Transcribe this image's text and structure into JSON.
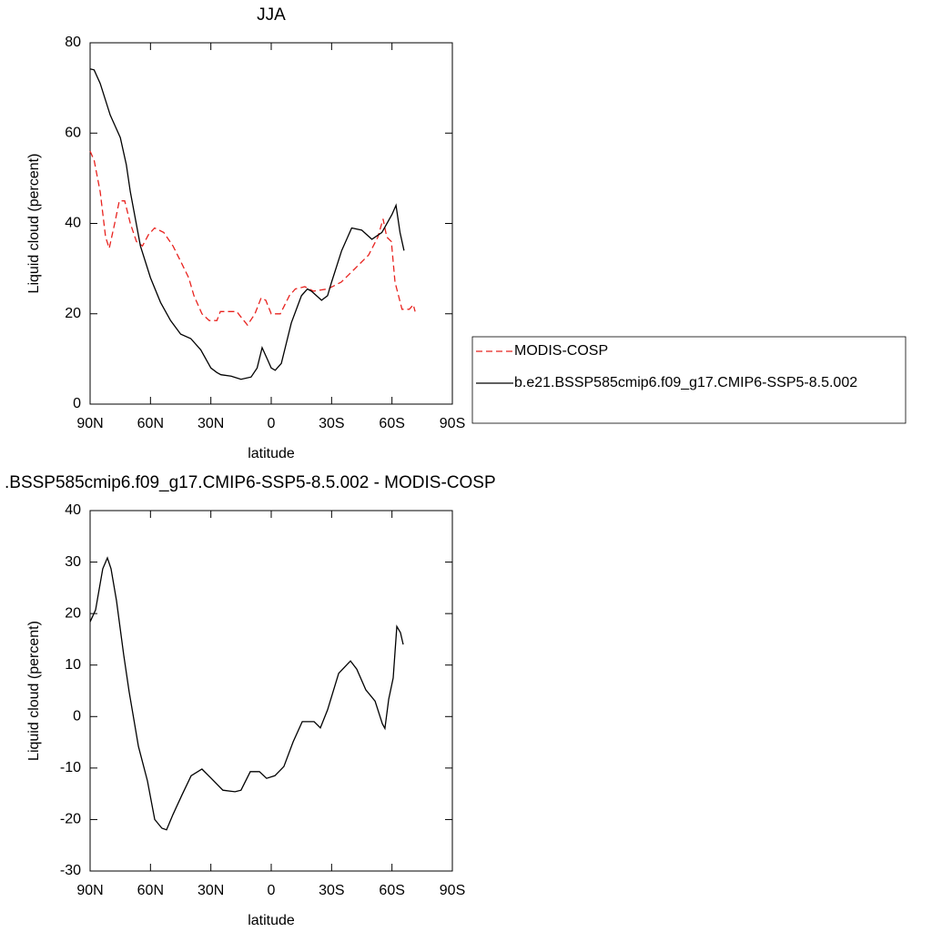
{
  "chart_data": [
    {
      "type": "line",
      "title": "JJA",
      "xlabel": "latitude",
      "ylabel": "Liquid cloud (percent)",
      "xlim": [
        90,
        -90
      ],
      "xticks": [
        {
          "value": 90,
          "label": "90N"
        },
        {
          "value": 60,
          "label": "60N"
        },
        {
          "value": 30,
          "label": "30N"
        },
        0,
        {
          "value": -30,
          "label": "30S"
        },
        {
          "value": -60,
          "label": "60S"
        },
        {
          "value": -90,
          "label": "90S"
        }
      ],
      "ylim": [
        0,
        80
      ],
      "yticks": [
        0,
        20,
        40,
        60,
        80
      ],
      "legend": "right",
      "series": [
        {
          "name": "MODIS-COSP",
          "color": "#e8231f",
          "dash": true,
          "x": [
            90,
            88,
            85,
            82.3,
            80.5,
            77.8,
            75.5,
            72.8,
            70,
            67,
            64,
            61,
            58,
            53.4,
            48.8,
            44.3,
            41,
            38.4,
            34.4,
            30.8,
            27,
            25.3,
            21.7,
            17.2,
            11.8,
            8.1,
            5,
            2.7,
            0,
            -4.5,
            -9,
            -12,
            -16.7,
            -21,
            -28,
            -34.8,
            -41.6,
            -48.4,
            -53,
            -55.6,
            -57.4,
            -59.7,
            -61.5,
            -65,
            -68.6,
            -70.6,
            -71.5
          ],
          "values": [
            56,
            54,
            47,
            37,
            34.5,
            40,
            45,
            45,
            40,
            36,
            35,
            37.5,
            39,
            38,
            35,
            31,
            28,
            24,
            20,
            18.5,
            18.5,
            20.5,
            20.5,
            20.5,
            17.5,
            20,
            23.5,
            23,
            20,
            20,
            24,
            25.5,
            26,
            25,
            25.5,
            27,
            30,
            33,
            37,
            41,
            37,
            36,
            27,
            21,
            21,
            22,
            20.5
          ]
        },
        {
          "name": "b.e21.BSSP585cmip6.f09_g17.CMIP6-SSP5-8.5.002",
          "color": "#000000",
          "dash": false,
          "x": [
            90,
            88,
            85,
            80,
            75,
            72,
            70,
            65,
            60,
            55,
            50,
            45,
            40,
            35,
            30,
            27,
            25,
            20,
            15,
            10,
            7,
            4.5,
            2,
            0,
            -2,
            -5,
            -10,
            -15,
            -18,
            -20,
            -25,
            -28,
            -30,
            -35,
            -40,
            -45,
            -50,
            -55,
            -60,
            -62,
            -64,
            -66
          ],
          "values": [
            74.2,
            74,
            71,
            64,
            59,
            53,
            47,
            35,
            28,
            22.5,
            18.5,
            15.5,
            14.5,
            12,
            8,
            7,
            6.5,
            6.2,
            5.5,
            6,
            8,
            12.5,
            10,
            8,
            7.5,
            9,
            18,
            24,
            25.5,
            25,
            23,
            24,
            27,
            34,
            39,
            38.5,
            36.5,
            38,
            42,
            44,
            38,
            34
          ]
        }
      ]
    },
    {
      "type": "line",
      "title": ".BSSP585cmip6.f09_g17.CMIP6-SSP5-8.5.002 - MODIS-COSP",
      "xlabel": "latitude",
      "ylabel": "Liquid cloud (percent)",
      "xlim": [
        90,
        -90
      ],
      "xticks": [
        {
          "value": 90,
          "label": "90N"
        },
        {
          "value": 60,
          "label": "60N"
        },
        {
          "value": 30,
          "label": "30N"
        },
        0,
        {
          "value": -30,
          "label": "30S"
        },
        {
          "value": -60,
          "label": "60S"
        },
        {
          "value": -90,
          "label": "90S"
        }
      ],
      "ylim": [
        -30,
        40
      ],
      "yticks": [
        -30,
        -20,
        -10,
        0,
        10,
        20,
        30,
        40
      ],
      "series": [
        {
          "color": "#000000",
          "dash": false,
          "x": [
            90,
            87.3,
            83.7,
            81.4,
            79.6,
            76.9,
            73.3,
            70.6,
            66,
            61.5,
            57.9,
            54.3,
            52,
            48.8,
            44.3,
            39.8,
            34.4,
            29.8,
            24,
            18,
            15,
            10.4,
            5.9,
            2.3,
            -1.8,
            -6.3,
            -10.9,
            -15.4,
            -21.3,
            -24.4,
            -28,
            -33.5,
            -39.4,
            -42.5,
            -47,
            -51.6,
            -55.2,
            -56.5,
            -58.4,
            -60.6,
            -62.4,
            -64.2,
            -65.6
          ],
          "values": [
            18.4,
            20.7,
            28.7,
            30.8,
            28.7,
            22.5,
            12,
            4.8,
            -5.8,
            -12.5,
            -20,
            -21.7,
            -22,
            -19,
            -15.2,
            -11.5,
            -10.2,
            -12,
            -14.3,
            -14.6,
            -14.3,
            -10.7,
            -10.7,
            -12,
            -11.5,
            -9.7,
            -4.9,
            -1,
            -1,
            -2.2,
            1.3,
            8.4,
            10.8,
            9.2,
            5.2,
            3,
            -1.4,
            -2.3,
            3.4,
            7.5,
            17.5,
            16.3,
            14
          ]
        }
      ]
    }
  ]
}
